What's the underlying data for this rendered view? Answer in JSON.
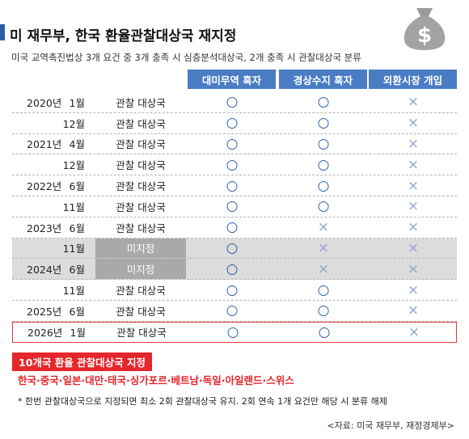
{
  "header": {
    "title": "미 재무부, 한국 환율관찰대상국 재지정",
    "subtitle": "미국 교역촉진법상 3개 요건 중 3개 충족 시 심층분석대상국, 2개 충족 시 관찰대상국 분류"
  },
  "table": {
    "columns": [
      "대미무역 흑자",
      "경상수지 흑자",
      "외환시장 개입"
    ],
    "rows": [
      {
        "year": "2020년",
        "month": "1월",
        "status": "관찰 대상국",
        "marks": [
          "○",
          "○",
          "×"
        ]
      },
      {
        "month": "12월",
        "status": "관찰 대상국",
        "marks": [
          "○",
          "○",
          "×"
        ]
      },
      {
        "year": "2021년",
        "month": "4월",
        "status": "관찰 대상국",
        "marks": [
          "○",
          "○",
          "×"
        ]
      },
      {
        "month": "12월",
        "status": "관찰 대상국",
        "marks": [
          "○",
          "○",
          "×"
        ]
      },
      {
        "year": "2022년",
        "month": "6월",
        "status": "관찰 대상국",
        "marks": [
          "○",
          "○",
          "×"
        ]
      },
      {
        "month": "11월",
        "status": "관찰 대상국",
        "marks": [
          "○",
          "○",
          "×"
        ]
      },
      {
        "year": "2023년",
        "month": "6월",
        "status": "관찰 대상국",
        "marks": [
          "○",
          "×",
          "×"
        ]
      },
      {
        "month": "11월",
        "status": "미지정",
        "marks": [
          "○",
          "×",
          "×"
        ],
        "shaded": true
      },
      {
        "year": "2024년",
        "month": "6월",
        "status": "미지정",
        "marks": [
          "○",
          "×",
          "×"
        ],
        "shaded": true
      },
      {
        "month": "11월",
        "status": "관찰 대상국",
        "marks": [
          "○",
          "○",
          "×"
        ]
      },
      {
        "year": "2025년",
        "month": "6월",
        "status": "관찰 대상국",
        "marks": [
          "○",
          "○",
          "×"
        ]
      },
      {
        "year": "2026년",
        "month": "1월",
        "status": "관찰 대상국",
        "marks": [
          "○",
          "○",
          "×"
        ],
        "highlighted": true
      }
    ]
  },
  "footer": {
    "box_title": "10개국 환율 관찰대상국 지정",
    "countries": "한국·중국·일본·대만·태국·싱가포르·베트남·독일·아일랜드·스위스",
    "note": "* 한번 관찰대상국으로 지정되면 최소 2회 관찰대상국 유지. 2회 연속 1개 요건만 해당 시 분류 해제",
    "source": "<자료: 미국 재무부, 재정경제부>"
  }
}
